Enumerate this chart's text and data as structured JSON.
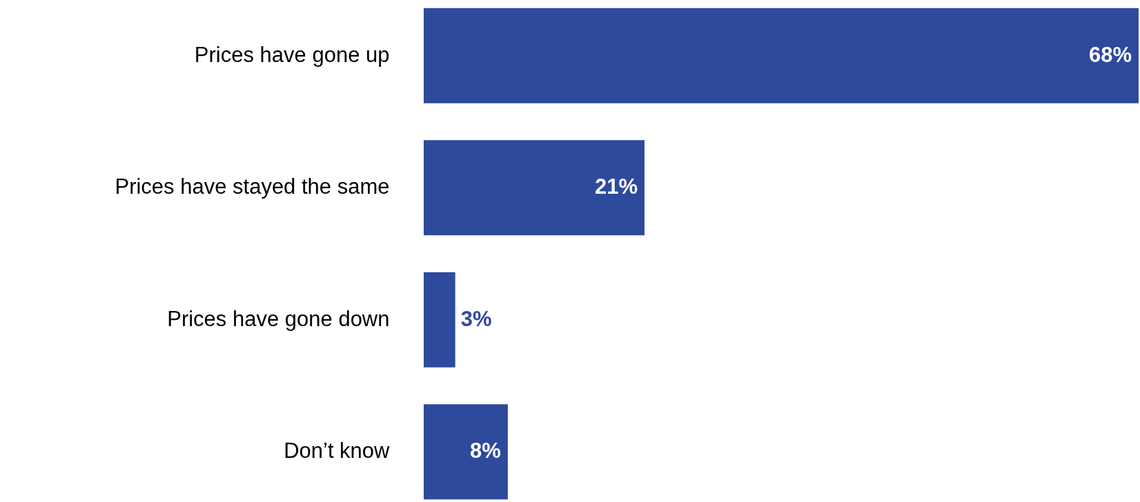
{
  "chart_data": {
    "type": "bar",
    "orientation": "horizontal",
    "categories": [
      "Prices have gone up",
      "Prices have stayed the same",
      "Prices have gone down",
      "Don’t know"
    ],
    "values": [
      68,
      21,
      3,
      8
    ],
    "value_labels": [
      "68%",
      "21%",
      "3%",
      "8%"
    ],
    "color": "#2e4a9c"
  }
}
